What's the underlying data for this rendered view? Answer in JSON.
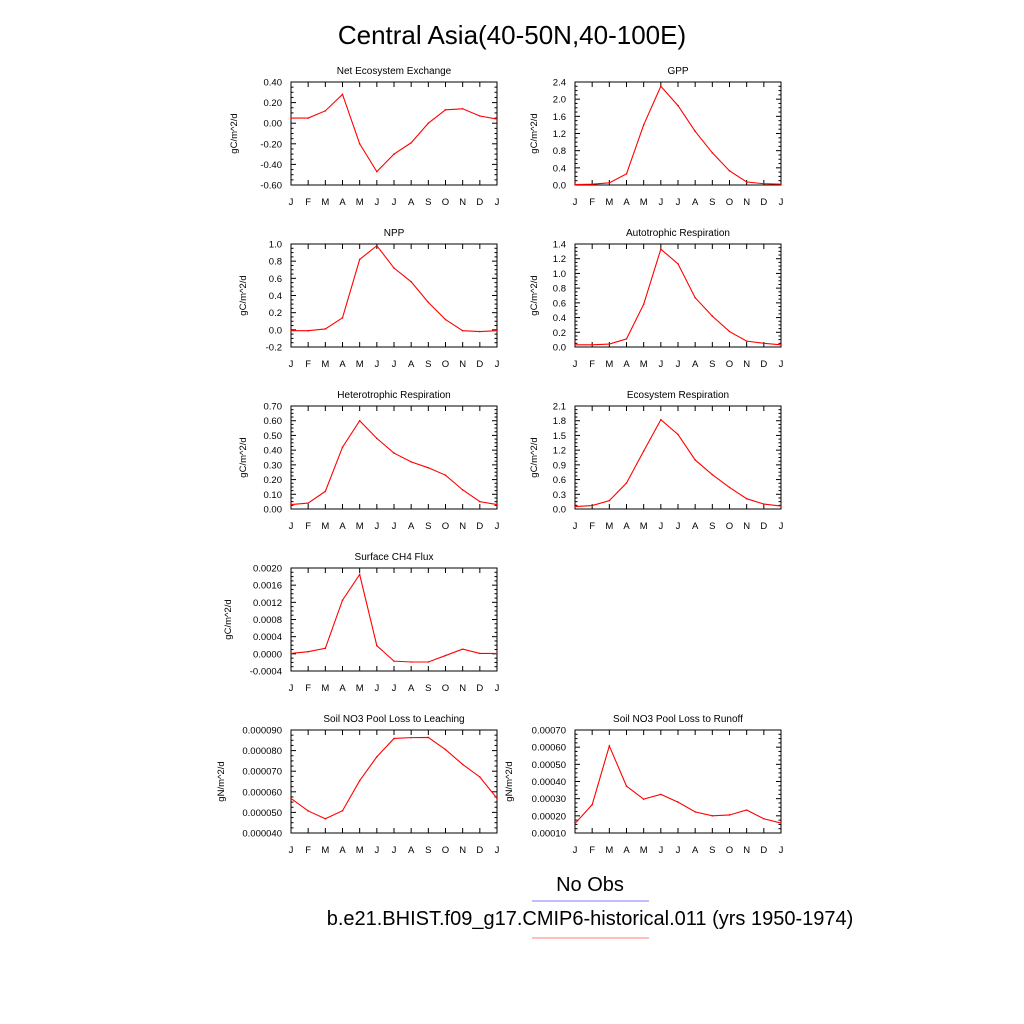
{
  "title": "Central Asia(40-50N,40-100E)",
  "month_labels": [
    "J",
    "F",
    "M",
    "A",
    "M",
    "J",
    "J",
    "A",
    "S",
    "O",
    "N",
    "D",
    "J"
  ],
  "legend": {
    "entries": [
      {
        "label": "No Obs",
        "color": "#7f7fff"
      },
      {
        "label": "b.e21.BHIST.f09_g17.CMIP6-historical.011 (yrs 1950-1974)",
        "color": "#ff7f7f"
      }
    ]
  },
  "chart_data": [
    {
      "type": "line",
      "title": "Net Ecosystem Exchange",
      "ylabel": "gC/m^2/d",
      "ylim": [
        -0.6,
        0.4
      ],
      "yticks": [
        "0.40",
        "0.20",
        "0.00",
        "-0.20",
        "-0.40",
        "-0.60"
      ],
      "series": [
        {
          "color": "#ff0000",
          "values": [
            0.05,
            0.05,
            0.12,
            0.28,
            -0.2,
            -0.47,
            -0.3,
            -0.19,
            0.0,
            0.13,
            0.14,
            0.07,
            0.04
          ]
        }
      ]
    },
    {
      "type": "line",
      "title": "GPP",
      "ylabel": "gC/m^2/d",
      "ylim": [
        0,
        2.4
      ],
      "yticks": [
        "2.4",
        "2.0",
        "1.6",
        "1.2",
        "0.8",
        "0.4",
        "0.0"
      ],
      "series": [
        {
          "color": "#ff0000",
          "values": [
            0.01,
            0.02,
            0.05,
            0.26,
            1.4,
            2.3,
            1.85,
            1.25,
            0.75,
            0.33,
            0.07,
            0.03,
            0.02
          ]
        }
      ]
    },
    {
      "type": "line",
      "title": "NPP",
      "ylabel": "gC/m^2/d",
      "ylim": [
        -0.2,
        1.0
      ],
      "yticks": [
        "1.0",
        "0.8",
        "0.6",
        "0.4",
        "0.2",
        "0.0",
        "-0.2"
      ],
      "series": [
        {
          "color": "#ff0000",
          "values": [
            -0.01,
            -0.01,
            0.01,
            0.14,
            0.82,
            0.98,
            0.72,
            0.56,
            0.32,
            0.12,
            -0.01,
            -0.02,
            -0.01
          ]
        }
      ]
    },
    {
      "type": "line",
      "title": "Autotrophic Respiration",
      "ylabel": "gC/m^2/d",
      "ylim": [
        0,
        1.4
      ],
      "yticks": [
        "1.4",
        "1.2",
        "1.0",
        "0.8",
        "0.6",
        "0.4",
        "0.2",
        "0.0"
      ],
      "series": [
        {
          "color": "#ff0000",
          "values": [
            0.03,
            0.03,
            0.04,
            0.11,
            0.58,
            1.33,
            1.13,
            0.67,
            0.42,
            0.21,
            0.08,
            0.05,
            0.03
          ]
        }
      ]
    },
    {
      "type": "line",
      "title": "Heterotrophic Respiration",
      "ylabel": "gC/m^2/d",
      "ylim": [
        0,
        0.7
      ],
      "yticks": [
        "0.70",
        "0.60",
        "0.50",
        "0.40",
        "0.30",
        "0.20",
        "0.10",
        "0.00"
      ],
      "series": [
        {
          "color": "#ff0000",
          "values": [
            0.03,
            0.04,
            0.12,
            0.42,
            0.6,
            0.48,
            0.38,
            0.32,
            0.28,
            0.23,
            0.13,
            0.05,
            0.03
          ]
        }
      ]
    },
    {
      "type": "line",
      "title": "Ecosystem Respiration",
      "ylabel": "gC/m^2/d",
      "ylim": [
        0,
        2.1
      ],
      "yticks": [
        "2.1",
        "1.8",
        "1.5",
        "1.2",
        "0.9",
        "0.6",
        "0.3",
        "0.0"
      ],
      "series": [
        {
          "color": "#ff0000",
          "values": [
            0.05,
            0.07,
            0.17,
            0.53,
            1.18,
            1.82,
            1.52,
            1.0,
            0.7,
            0.44,
            0.21,
            0.1,
            0.06
          ]
        }
      ]
    },
    {
      "type": "line",
      "title": "Surface CH4 Flux",
      "ylabel": "gC/m^2/d",
      "ylim": [
        -0.0004,
        0.002
      ],
      "yticks": [
        "0.0020",
        "0.0016",
        "0.0012",
        "0.0008",
        "0.0004",
        "0.0000",
        "-0.0004"
      ],
      "series": [
        {
          "color": "#ff0000",
          "values": [
            1e-05,
            5e-05,
            0.00013,
            0.00125,
            0.00185,
            0.00019,
            -0.00017,
            -0.00019,
            -0.00019,
            -4e-05,
            0.00011,
            1e-05,
            1e-05
          ]
        }
      ]
    },
    {
      "type": "line",
      "title": "Soil NO3 Pool Loss to Leaching",
      "ylabel": "gN/m^2/d",
      "ylim": [
        4e-05,
        9e-05
      ],
      "yticks": [
        "0.000090",
        "0.000080",
        "0.000070",
        "0.000060",
        "0.000050",
        "0.000040"
      ],
      "series": [
        {
          "color": "#ff0000",
          "values": [
            5.68e-05,
            5.07e-05,
            4.69e-05,
            5.08e-05,
            6.54e-05,
            7.7e-05,
            8.59e-05,
            8.63e-05,
            8.64e-05,
            8.05e-05,
            7.33e-05,
            6.72e-05,
            5.68e-05
          ]
        }
      ]
    },
    {
      "type": "line",
      "title": "Soil NO3 Pool Loss to Runoff",
      "ylabel": "gN/m^2/d",
      "ylim": [
        0.0001,
        0.0007
      ],
      "yticks": [
        "0.00070",
        "0.00060",
        "0.00050",
        "0.00040",
        "0.00030",
        "0.00020",
        "0.00010"
      ],
      "series": [
        {
          "color": "#ff0000",
          "values": [
            0.000155,
            0.000265,
            0.000607,
            0.000373,
            0.000297,
            0.000325,
            0.00028,
            0.000223,
            0.0002,
            0.000205,
            0.000234,
            0.000183,
            0.000158
          ]
        }
      ]
    }
  ]
}
